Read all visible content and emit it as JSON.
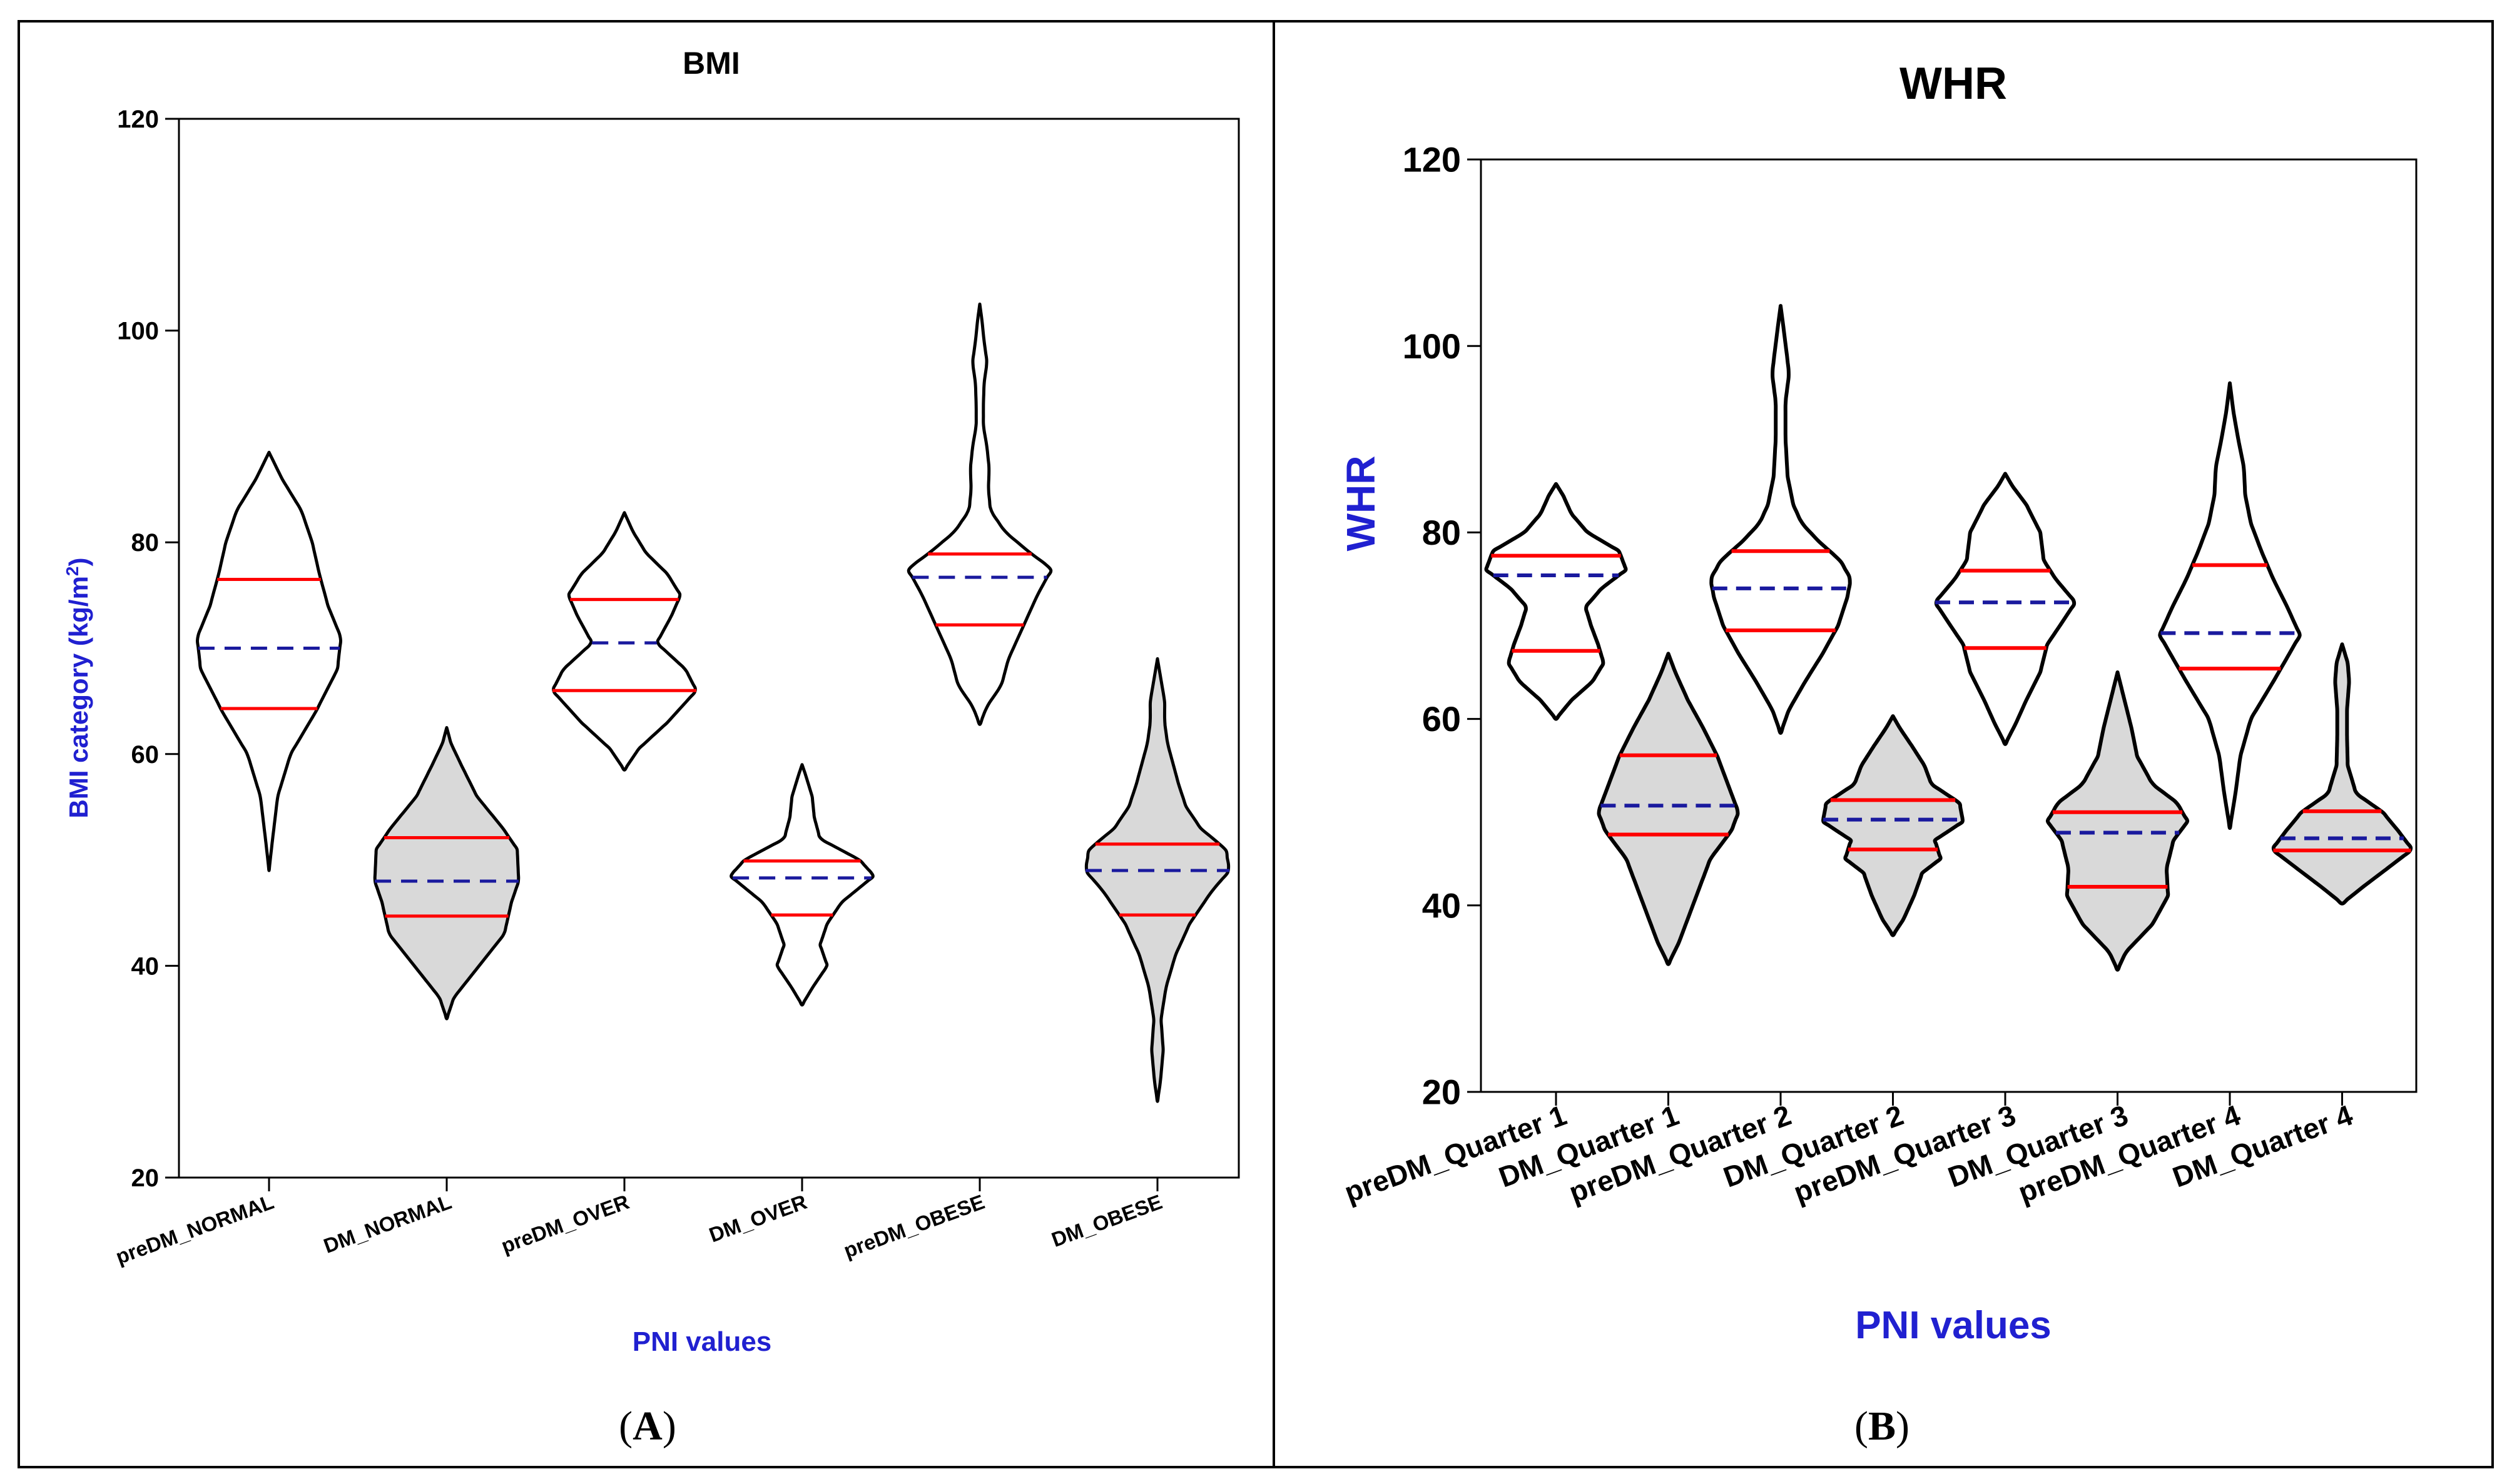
{
  "figure": {
    "panel_labels": [
      {
        "prefix": "(",
        "letter": "A",
        "suffix": ")"
      },
      {
        "prefix": "(",
        "letter": "B",
        "suffix": ")"
      }
    ]
  },
  "colors": {
    "outline": "#000000",
    "fill_dm": "#d9d9d9",
    "quartile_line": "#ff0000",
    "median_line": "#1a1a9e",
    "axis_label_blue": "#2020d0",
    "frame": "#000000"
  },
  "chart_data": [
    {
      "type": "violin",
      "title": "BMI",
      "xlabel": "PNI values",
      "ylabel_main": "BMI category (kg/m",
      "ylabel_sup": "2",
      "ylabel_tail": ")",
      "ylim": [
        20,
        120
      ],
      "yticks": [
        20,
        40,
        60,
        80,
        100,
        120
      ],
      "grid": false,
      "categories": [
        "preDM_NORMAL",
        "DM_NORMAL",
        "preDM_OVER",
        "DM_OVER",
        "preDM_OBESE",
        "DM_OBESE"
      ],
      "series": [
        {
          "name": "preDM_NORMAL",
          "filled": false,
          "min": 49,
          "max": 88.5,
          "q1": 64.3,
          "median": 70,
          "q3": 76.5,
          "profile": [
            [
              49,
              0
            ],
            [
              52,
              0.05
            ],
            [
              56,
              0.12
            ],
            [
              60,
              0.3
            ],
            [
              64,
              0.65
            ],
            [
              68,
              0.95
            ],
            [
              71,
              1.0
            ],
            [
              74,
              0.82
            ],
            [
              77,
              0.7
            ],
            [
              80,
              0.6
            ],
            [
              83,
              0.45
            ],
            [
              86,
              0.18
            ],
            [
              88.5,
              0
            ]
          ]
        },
        {
          "name": "DM_NORMAL",
          "filled": true,
          "min": 35,
          "max": 62.5,
          "q1": 44.7,
          "median": 48,
          "q3": 52.1,
          "profile": [
            [
              35,
              0
            ],
            [
              37,
              0.1
            ],
            [
              40,
              0.45
            ],
            [
              43,
              0.8
            ],
            [
              46,
              0.9
            ],
            [
              48,
              1.0
            ],
            [
              51,
              0.98
            ],
            [
              53,
              0.78
            ],
            [
              56,
              0.42
            ],
            [
              59,
              0.2
            ],
            [
              61,
              0.06
            ],
            [
              62.5,
              0
            ]
          ]
        },
        {
          "name": "preDM_OVER",
          "filled": false,
          "min": 58.5,
          "max": 82.8,
          "q1": 66,
          "median": 70.5,
          "q3": 74.6,
          "profile": [
            [
              58.5,
              0
            ],
            [
              60.5,
              0.2
            ],
            [
              63,
              0.6
            ],
            [
              66,
              1.0
            ],
            [
              68,
              0.85
            ],
            [
              70.5,
              0.45
            ],
            [
              73,
              0.65
            ],
            [
              75,
              0.78
            ],
            [
              77,
              0.6
            ],
            [
              79,
              0.3
            ],
            [
              81,
              0.12
            ],
            [
              82.8,
              0
            ]
          ]
        },
        {
          "name": "DM_OVER",
          "filled": false,
          "min": 36.3,
          "max": 59,
          "q1": 44.8,
          "median": 48.3,
          "q3": 49.9,
          "profile": [
            [
              36.3,
              0
            ],
            [
              38,
              0.15
            ],
            [
              40,
              0.35
            ],
            [
              42,
              0.25
            ],
            [
              44,
              0.35
            ],
            [
              46,
              0.55
            ],
            [
              48.5,
              1.0
            ],
            [
              50,
              0.8
            ],
            [
              52,
              0.25
            ],
            [
              54,
              0.17
            ],
            [
              56,
              0.14
            ],
            [
              58,
              0.05
            ],
            [
              59,
              0
            ]
          ]
        },
        {
          "name": "preDM_OBESE",
          "filled": false,
          "min": 62.8,
          "max": 102.5,
          "q1": 72.2,
          "median": 76.7,
          "q3": 78.9,
          "profile": [
            [
              62.8,
              0
            ],
            [
              64.5,
              0.1
            ],
            [
              66.5,
              0.3
            ],
            [
              69,
              0.4
            ],
            [
              72,
              0.6
            ],
            [
              75,
              0.8
            ],
            [
              77.5,
              1.0
            ],
            [
              79,
              0.7
            ],
            [
              81,
              0.35
            ],
            [
              83,
              0.15
            ],
            [
              85,
              0.12
            ],
            [
              87,
              0.13
            ],
            [
              89,
              0.1
            ],
            [
              91,
              0.05
            ],
            [
              93,
              0.05
            ],
            [
              95,
              0.06
            ],
            [
              97,
              0.1
            ],
            [
              99,
              0.06
            ],
            [
              101,
              0.03
            ],
            [
              102.5,
              0
            ]
          ]
        },
        {
          "name": "DM_OBESE",
          "filled": true,
          "min": 27.2,
          "max": 69,
          "q1": 44.8,
          "median": 49,
          "q3": 51.5,
          "profile": [
            [
              27.2,
              0
            ],
            [
              29,
              0.04
            ],
            [
              32,
              0.08
            ],
            [
              35,
              0.05
            ],
            [
              38,
              0.12
            ],
            [
              41,
              0.25
            ],
            [
              44,
              0.45
            ],
            [
              47,
              0.75
            ],
            [
              49,
              1.0
            ],
            [
              51,
              0.95
            ],
            [
              53,
              0.6
            ],
            [
              55,
              0.4
            ],
            [
              57,
              0.3
            ],
            [
              59,
              0.22
            ],
            [
              61,
              0.14
            ],
            [
              63,
              0.1
            ],
            [
              65,
              0.1
            ],
            [
              67,
              0.05
            ],
            [
              69,
              0
            ]
          ]
        }
      ]
    },
    {
      "type": "violin",
      "title": "WHR",
      "xlabel": "PNI values",
      "ylabel": "WHR",
      "ylim": [
        20,
        120
      ],
      "yticks": [
        20,
        40,
        60,
        80,
        100,
        120
      ],
      "grid": false,
      "categories": [
        "preDM_Quarter 1",
        "DM_Quarter 1",
        "preDM_Quarter 2",
        "DM_Quarter 2",
        "preDM_Quarter 3",
        "DM_Quarter 3",
        "preDM_Quarter 4",
        "DM_Quarter 4"
      ],
      "series": [
        {
          "name": "preDM_Quarter 1",
          "filled": false,
          "min": 60,
          "max": 85.2,
          "q1": 67.3,
          "median": 75.4,
          "q3": 77.5,
          "profile": [
            [
              60,
              0
            ],
            [
              62,
              0.22
            ],
            [
              64,
              0.52
            ],
            [
              66,
              0.68
            ],
            [
              68,
              0.6
            ],
            [
              70,
              0.5
            ],
            [
              72,
              0.42
            ],
            [
              74,
              0.65
            ],
            [
              76,
              1.0
            ],
            [
              78,
              0.9
            ],
            [
              80,
              0.45
            ],
            [
              82,
              0.22
            ],
            [
              84,
              0.1
            ],
            [
              85.2,
              0
            ]
          ]
        },
        {
          "name": "DM_Quarter 1",
          "filled": true,
          "min": 33.7,
          "max": 67,
          "q1": 47.6,
          "median": 50.7,
          "q3": 56.1,
          "profile": [
            [
              33.7,
              0
            ],
            [
              36,
              0.15
            ],
            [
              39,
              0.3
            ],
            [
              42,
              0.45
            ],
            [
              45,
              0.6
            ],
            [
              48,
              0.9
            ],
            [
              50,
              1.0
            ],
            [
              53,
              0.85
            ],
            [
              56,
              0.7
            ],
            [
              59,
              0.5
            ],
            [
              62,
              0.28
            ],
            [
              65,
              0.1
            ],
            [
              67,
              0
            ]
          ]
        },
        {
          "name": "preDM_Quarter 2",
          "filled": false,
          "min": 58.5,
          "max": 104.3,
          "q1": 69.5,
          "median": 74,
          "q3": 78,
          "profile": [
            [
              58.5,
              0
            ],
            [
              61,
              0.12
            ],
            [
              64,
              0.35
            ],
            [
              67,
              0.6
            ],
            [
              70,
              0.82
            ],
            [
              73,
              0.95
            ],
            [
              75,
              1.0
            ],
            [
              77,
              0.85
            ],
            [
              79,
              0.55
            ],
            [
              81,
              0.3
            ],
            [
              83,
              0.18
            ],
            [
              86,
              0.1
            ],
            [
              90,
              0.07
            ],
            [
              94,
              0.07
            ],
            [
              97,
              0.12
            ],
            [
              99,
              0.09
            ],
            [
              102,
              0.04
            ],
            [
              104.3,
              0
            ]
          ]
        },
        {
          "name": "DM_Quarter 2",
          "filled": true,
          "min": 36.8,
          "max": 60.3,
          "q1": 46,
          "median": 49.2,
          "q3": 51.3,
          "profile": [
            [
              36.8,
              0
            ],
            [
              38.5,
              0.15
            ],
            [
              41,
              0.3
            ],
            [
              43.5,
              0.42
            ],
            [
              45,
              0.68
            ],
            [
              47,
              0.6
            ],
            [
              49,
              1.0
            ],
            [
              51,
              0.95
            ],
            [
              53,
              0.55
            ],
            [
              55,
              0.45
            ],
            [
              57,
              0.28
            ],
            [
              59,
              0.1
            ],
            [
              60.3,
              0
            ]
          ]
        },
        {
          "name": "preDM_Quarter 3",
          "filled": false,
          "min": 57.3,
          "max": 86.3,
          "q1": 67.6,
          "median": 72.5,
          "q3": 75.9,
          "profile": [
            [
              57.3,
              0
            ],
            [
              59.5,
              0.15
            ],
            [
              62,
              0.3
            ],
            [
              65,
              0.5
            ],
            [
              68,
              0.6
            ],
            [
              70,
              0.78
            ],
            [
              72.5,
              1.0
            ],
            [
              75,
              0.72
            ],
            [
              77,
              0.55
            ],
            [
              80,
              0.5
            ],
            [
              83,
              0.3
            ],
            [
              85,
              0.1
            ],
            [
              86.3,
              0
            ]
          ]
        },
        {
          "name": "DM_Quarter 3",
          "filled": true,
          "min": 33.1,
          "max": 65,
          "q1": 42,
          "median": 47.8,
          "q3": 50,
          "profile": [
            [
              33.1,
              0
            ],
            [
              35,
              0.12
            ],
            [
              38,
              0.5
            ],
            [
              41,
              0.72
            ],
            [
              44,
              0.7
            ],
            [
              47,
              0.8
            ],
            [
              49,
              1.0
            ],
            [
              51,
              0.85
            ],
            [
              53,
              0.5
            ],
            [
              56,
              0.28
            ],
            [
              59,
              0.2
            ],
            [
              62,
              0.1
            ],
            [
              65,
              0
            ]
          ]
        },
        {
          "name": "preDM_Quarter 4",
          "filled": false,
          "min": 48.3,
          "max": 96,
          "q1": 65.4,
          "median": 69.2,
          "q3": 76.5,
          "profile": [
            [
              48.3,
              0
            ],
            [
              52,
              0.08
            ],
            [
              56,
              0.15
            ],
            [
              60,
              0.3
            ],
            [
              64,
              0.62
            ],
            [
              67,
              0.85
            ],
            [
              69,
              1.0
            ],
            [
              72,
              0.82
            ],
            [
              75,
              0.62
            ],
            [
              78,
              0.45
            ],
            [
              81,
              0.3
            ],
            [
              84,
              0.22
            ],
            [
              87,
              0.2
            ],
            [
              90,
              0.12
            ],
            [
              93,
              0.05
            ],
            [
              96,
              0
            ]
          ]
        },
        {
          "name": "DM_Quarter 4",
          "filled": true,
          "min": 40.2,
          "max": 68,
          "q1": 45.9,
          "median": 47.2,
          "q3": 50.1,
          "profile": [
            [
              40.2,
              0
            ],
            [
              42,
              0.3
            ],
            [
              44,
              0.65
            ],
            [
              46,
              1.0
            ],
            [
              48,
              0.8
            ],
            [
              50,
              0.58
            ],
            [
              52,
              0.2
            ],
            [
              55,
              0.08
            ],
            [
              58,
              0.07
            ],
            [
              61,
              0.07
            ],
            [
              64,
              0.1
            ],
            [
              66,
              0.08
            ],
            [
              68,
              0
            ]
          ]
        }
      ]
    }
  ]
}
